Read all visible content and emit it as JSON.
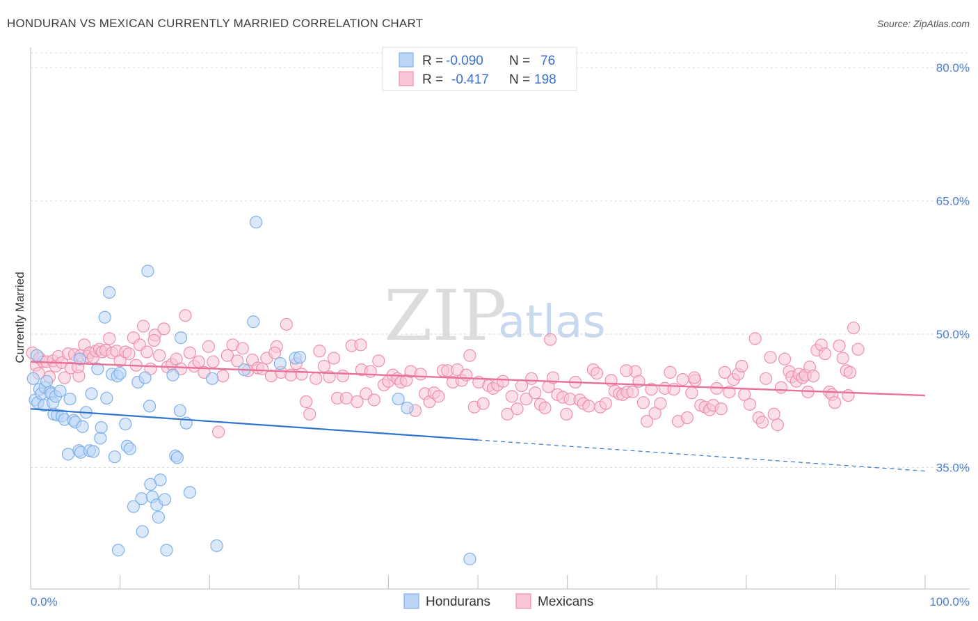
{
  "chart_data": {
    "type": "scatter",
    "title": "HONDURAN VS MEXICAN CURRENTLY MARRIED CORRELATION CHART",
    "source": "Source: ZipAtlas.com",
    "xlabel": "",
    "ylabel": "Currently Married",
    "xlim": [
      0,
      100
    ],
    "ylim": [
      20,
      82
    ],
    "x_tick_labels": [
      "0.0%",
      "100.0%"
    ],
    "y_ticks": [
      35,
      50,
      65,
      80
    ],
    "y_tick_labels": [
      "35.0%",
      "50.0%",
      "65.0%",
      "80.0%"
    ],
    "grid": true,
    "legend": [
      {
        "name": "Hondurans",
        "r_label": "R =",
        "r_value": "-0.090",
        "n_label": "N =",
        "n_value": "76",
        "color": "#7fb0ea",
        "fill": "#bcd5f5"
      },
      {
        "name": "Mexicans",
        "r_label": "R =",
        "r_value": "-0.417",
        "n_label": "N =",
        "n_value": "198",
        "color": "#ef8fae",
        "fill": "#f8c6d6"
      }
    ],
    "series": [
      {
        "name": "Hondurans",
        "color": "#7fb0ea",
        "trend": {
          "x0": 0,
          "y0": 41.6,
          "x1": 50,
          "y1": 38.1,
          "dash_to_x": 100,
          "dash_to_y": 34.6,
          "color": "#2e73d0"
        },
        "points": [
          [
            0.3,
            45.0
          ],
          [
            0.5,
            42.6
          ],
          [
            0.8,
            42.3
          ],
          [
            1.0,
            43.8
          ],
          [
            1.2,
            43.3
          ],
          [
            1.5,
            42.0
          ],
          [
            1.6,
            44.0
          ],
          [
            1.8,
            44.7
          ],
          [
            2.2,
            43.5
          ],
          [
            2.3,
            43.3
          ],
          [
            2.5,
            42.3
          ],
          [
            2.6,
            41.0
          ],
          [
            2.8,
            43.0
          ],
          [
            3.0,
            40.9
          ],
          [
            3.3,
            43.6
          ],
          [
            3.5,
            40.8
          ],
          [
            3.8,
            40.4
          ],
          [
            4.2,
            36.5
          ],
          [
            4.4,
            42.7
          ],
          [
            4.8,
            40.3
          ],
          [
            5.0,
            40.1
          ],
          [
            5.4,
            36.9
          ],
          [
            5.6,
            36.7
          ],
          [
            5.8,
            39.6
          ],
          [
            6.2,
            41.2
          ],
          [
            6.6,
            36.9
          ],
          [
            6.8,
            43.3
          ],
          [
            7.0,
            36.8
          ],
          [
            7.5,
            46.1
          ],
          [
            7.8,
            38.3
          ],
          [
            7.9,
            39.5
          ],
          [
            8.3,
            51.9
          ],
          [
            8.5,
            42.8
          ],
          [
            8.8,
            54.7
          ],
          [
            9.1,
            45.5
          ],
          [
            9.4,
            36.2
          ],
          [
            9.7,
            45.3
          ],
          [
            9.8,
            25.7
          ],
          [
            10.0,
            45.6
          ],
          [
            10.6,
            39.9
          ],
          [
            10.8,
            37.4
          ],
          [
            11.1,
            37.1
          ],
          [
            11.5,
            30.6
          ],
          [
            12.0,
            44.6
          ],
          [
            12.4,
            31.5
          ],
          [
            12.5,
            27.8
          ],
          [
            12.8,
            45.1
          ],
          [
            13.1,
            57.1
          ],
          [
            13.3,
            41.9
          ],
          [
            13.4,
            33.1
          ],
          [
            13.6,
            31.7
          ],
          [
            14.1,
            30.8
          ],
          [
            14.3,
            29.4
          ],
          [
            14.5,
            33.6
          ],
          [
            15.0,
            31.4
          ],
          [
            15.2,
            25.7
          ],
          [
            15.9,
            45.4
          ],
          [
            16.2,
            36.3
          ],
          [
            16.4,
            36.1
          ],
          [
            16.7,
            41.4
          ],
          [
            16.8,
            49.6
          ],
          [
            17.4,
            40.0
          ],
          [
            17.8,
            32.2
          ],
          [
            20.3,
            45.0
          ],
          [
            20.8,
            26.2
          ],
          [
            23.9,
            46.0
          ],
          [
            24.9,
            51.4
          ],
          [
            25.2,
            62.6
          ],
          [
            27.9,
            46.7
          ],
          [
            29.6,
            47.3
          ],
          [
            30.1,
            47.4
          ],
          [
            41.1,
            42.7
          ],
          [
            42.1,
            41.7
          ],
          [
            49.1,
            24.7
          ],
          [
            5.5,
            47.2
          ],
          [
            0.7,
            47.6
          ]
        ]
      },
      {
        "name": "Mexicans",
        "color": "#ef8fae",
        "trend": {
          "x0": 0,
          "y0": 46.9,
          "x1": 100,
          "y1": 43.1,
          "color": "#e8719a"
        },
        "points": [
          [
            0.2,
            47.9
          ],
          [
            0.6,
            46.5
          ],
          [
            1.0,
            47.3
          ],
          [
            1.4,
            46.9
          ],
          [
            1.8,
            46.9
          ],
          [
            2.1,
            45.2
          ],
          [
            2.5,
            47.0
          ],
          [
            2.8,
            46.4
          ],
          [
            3.1,
            47.5
          ],
          [
            3.5,
            46.8
          ],
          [
            3.8,
            45.1
          ],
          [
            4.2,
            47.8
          ],
          [
            4.5,
            46.2
          ],
          [
            4.9,
            47.7
          ],
          [
            5.4,
            45.3
          ],
          [
            5.6,
            47.6
          ],
          [
            6.0,
            48.8
          ],
          [
            6.4,
            47.5
          ],
          [
            6.6,
            47.9
          ],
          [
            7.0,
            47.4
          ],
          [
            7.3,
            48.1
          ],
          [
            7.7,
            48.3
          ],
          [
            8.0,
            48.0
          ],
          [
            8.4,
            48.2
          ],
          [
            8.8,
            49.5
          ],
          [
            9.1,
            47.9
          ],
          [
            9.6,
            48.1
          ],
          [
            10.0,
            47.0
          ],
          [
            10.6,
            48.0
          ],
          [
            11.0,
            47.8
          ],
          [
            11.5,
            49.6
          ],
          [
            11.8,
            46.5
          ],
          [
            12.2,
            48.8
          ],
          [
            12.6,
            50.9
          ],
          [
            13.0,
            48.0
          ],
          [
            13.4,
            46.1
          ],
          [
            13.9,
            49.9
          ],
          [
            14.4,
            47.6
          ],
          [
            14.9,
            50.6
          ],
          [
            15.3,
            46.3
          ],
          [
            15.8,
            46.6
          ],
          [
            16.3,
            47.2
          ],
          [
            16.8,
            46.1
          ],
          [
            17.3,
            52.1
          ],
          [
            17.8,
            47.9
          ],
          [
            18.3,
            46.4
          ],
          [
            18.8,
            46.9
          ],
          [
            19.4,
            45.7
          ],
          [
            19.9,
            48.6
          ],
          [
            20.4,
            46.9
          ],
          [
            21.0,
            39.0
          ],
          [
            21.5,
            45.3
          ],
          [
            22.0,
            47.6
          ],
          [
            22.6,
            48.8
          ],
          [
            23.1,
            47.0
          ],
          [
            23.7,
            48.4
          ],
          [
            24.3,
            45.9
          ],
          [
            24.8,
            47.1
          ],
          [
            25.4,
            46.2
          ],
          [
            25.9,
            46.1
          ],
          [
            26.4,
            47.3
          ],
          [
            26.9,
            45.3
          ],
          [
            27.5,
            48.6
          ],
          [
            28.0,
            45.7
          ],
          [
            28.6,
            51.1
          ],
          [
            29.1,
            45.4
          ],
          [
            29.7,
            46.7
          ],
          [
            30.3,
            45.5
          ],
          [
            30.8,
            42.4
          ],
          [
            31.2,
            41.0
          ],
          [
            31.9,
            45.0
          ],
          [
            32.3,
            48.1
          ],
          [
            32.8,
            46.4
          ],
          [
            33.4,
            45.2
          ],
          [
            33.9,
            47.3
          ],
          [
            34.3,
            42.8
          ],
          [
            34.9,
            45.3
          ],
          [
            35.3,
            42.8
          ],
          [
            35.9,
            48.7
          ],
          [
            36.5,
            42.4
          ],
          [
            37.0,
            46.0
          ],
          [
            37.5,
            43.3
          ],
          [
            38.0,
            45.8
          ],
          [
            38.4,
            42.6
          ],
          [
            38.9,
            47.0
          ],
          [
            39.5,
            44.3
          ],
          [
            40.0,
            44.7
          ],
          [
            40.5,
            45.4
          ],
          [
            41.0,
            45.0
          ],
          [
            41.4,
            44.6
          ],
          [
            42.0,
            44.8
          ],
          [
            42.5,
            45.8
          ],
          [
            43.0,
            41.4
          ],
          [
            43.6,
            45.5
          ],
          [
            44.1,
            43.3
          ],
          [
            44.6,
            42.4
          ],
          [
            45.1,
            43.4
          ],
          [
            45.6,
            43.0
          ],
          [
            46.1,
            45.9
          ],
          [
            46.6,
            45.9
          ],
          [
            47.2,
            44.6
          ],
          [
            47.7,
            46.0
          ],
          [
            48.2,
            44.8
          ],
          [
            48.7,
            45.4
          ],
          [
            49.1,
            47.6
          ],
          [
            49.6,
            41.8
          ],
          [
            50.1,
            44.6
          ],
          [
            50.6,
            42.2
          ],
          [
            51.2,
            44.2
          ],
          [
            51.7,
            43.9
          ],
          [
            52.2,
            44.3
          ],
          [
            52.8,
            44.7
          ],
          [
            53.3,
            41.0
          ],
          [
            53.8,
            43.0
          ],
          [
            54.4,
            41.6
          ],
          [
            54.9,
            44.2
          ],
          [
            55.4,
            42.7
          ],
          [
            56.0,
            45.0
          ],
          [
            56.4,
            43.4
          ],
          [
            57.0,
            42.1
          ],
          [
            57.5,
            41.7
          ],
          [
            57.9,
            44.1
          ],
          [
            58.4,
            45.1
          ],
          [
            58.9,
            43.2
          ],
          [
            59.5,
            42.9
          ],
          [
            59.9,
            41.0
          ],
          [
            60.3,
            42.7
          ],
          [
            60.9,
            44.6
          ],
          [
            61.4,
            42.6
          ],
          [
            61.8,
            42.2
          ],
          [
            62.4,
            41.9
          ],
          [
            62.9,
            46.0
          ],
          [
            63.3,
            45.6
          ],
          [
            63.7,
            41.8
          ],
          [
            64.3,
            42.2
          ],
          [
            64.9,
            44.8
          ],
          [
            65.3,
            43.6
          ],
          [
            65.8,
            43.3
          ],
          [
            66.2,
            43.2
          ],
          [
            66.7,
            43.5
          ],
          [
            67.3,
            43.5
          ],
          [
            67.6,
            45.8
          ],
          [
            68.0,
            44.7
          ],
          [
            68.5,
            42.3
          ],
          [
            68.9,
            40.2
          ],
          [
            69.4,
            43.8
          ],
          [
            69.8,
            41.1
          ],
          [
            70.4,
            42.2
          ],
          [
            70.9,
            43.9
          ],
          [
            71.5,
            45.7
          ],
          [
            71.9,
            43.8
          ],
          [
            72.4,
            40.2
          ],
          [
            72.9,
            44.9
          ],
          [
            73.4,
            40.6
          ],
          [
            73.9,
            43.4
          ],
          [
            74.3,
            44.8
          ],
          [
            74.9,
            42.0
          ],
          [
            75.4,
            41.8
          ],
          [
            75.9,
            41.5
          ],
          [
            76.3,
            42.0
          ],
          [
            76.7,
            43.9
          ],
          [
            77.2,
            41.6
          ],
          [
            77.6,
            45.7
          ],
          [
            78.1,
            43.5
          ],
          [
            78.6,
            44.9
          ],
          [
            79.1,
            45.5
          ],
          [
            79.5,
            46.4
          ],
          [
            79.8,
            43.2
          ],
          [
            80.4,
            42.1
          ],
          [
            81.0,
            49.5
          ],
          [
            81.4,
            40.6
          ],
          [
            81.8,
            40.1
          ],
          [
            82.2,
            45.0
          ],
          [
            82.7,
            47.4
          ],
          [
            83.1,
            41.0
          ],
          [
            83.5,
            39.8
          ],
          [
            83.9,
            44.0
          ],
          [
            84.3,
            47.2
          ],
          [
            84.8,
            45.8
          ],
          [
            85.1,
            45.2
          ],
          [
            85.6,
            44.7
          ],
          [
            85.9,
            45.5
          ],
          [
            86.3,
            45.1
          ],
          [
            86.6,
            45.4
          ],
          [
            87.1,
            46.3
          ],
          [
            87.5,
            45.3
          ],
          [
            87.9,
            48.2
          ],
          [
            88.4,
            48.8
          ],
          [
            88.8,
            47.8
          ],
          [
            89.3,
            43.5
          ],
          [
            89.6,
            43.2
          ],
          [
            89.9,
            42.3
          ],
          [
            90.4,
            48.7
          ],
          [
            90.8,
            47.3
          ],
          [
            91.2,
            45.9
          ],
          [
            91.6,
            45.7
          ],
          [
            92.0,
            50.7
          ],
          [
            92.5,
            48.3
          ],
          [
            0.9,
            45.6
          ],
          [
            5.3,
            46.3
          ],
          [
            13.8,
            49.3
          ],
          [
            27.3,
            47.9
          ],
          [
            36.9,
            48.8
          ],
          [
            58.1,
            49.4
          ],
          [
            66.6,
            45.9
          ],
          [
            74.2,
            45.1
          ],
          [
            86.9,
            43.5
          ],
          [
            91.4,
            43.1
          ]
        ]
      }
    ]
  }
}
